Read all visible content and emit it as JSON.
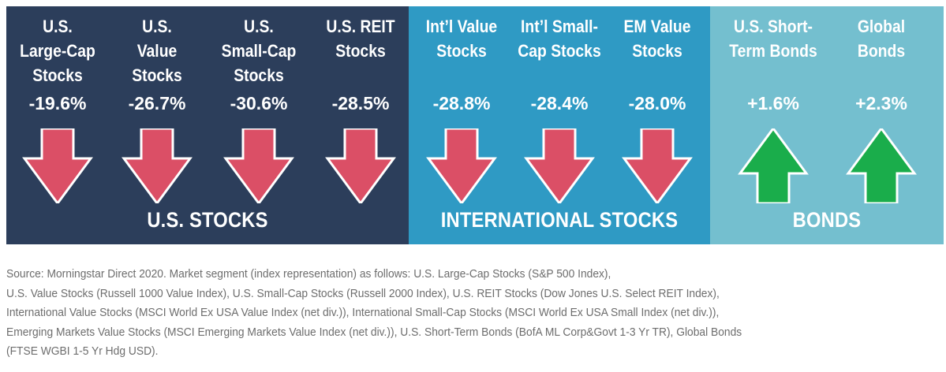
{
  "chart_data": {
    "type": "table",
    "groups": [
      {
        "name": "U.S. STOCKS",
        "color": "#2c3e5b",
        "items": [
          {
            "label": "U.S.\nLarge-Cap\nStocks",
            "value": -19.6,
            "display": "-19.6%",
            "direction": "down"
          },
          {
            "label": "U.S.\nValue\nStocks",
            "value": -26.7,
            "display": "-26.7%",
            "direction": "down"
          },
          {
            "label": "U.S.\nSmall-Cap\nStocks",
            "value": -30.6,
            "display": "-30.6%",
            "direction": "down"
          },
          {
            "label": "U.S. REIT\nStocks",
            "value": -28.5,
            "display": "-28.5%",
            "direction": "down"
          }
        ]
      },
      {
        "name": "INTERNATIONAL STOCKS",
        "color": "#2f9ac4",
        "items": [
          {
            "label": "Int’l Value\nStocks",
            "value": -28.8,
            "display": "-28.8%",
            "direction": "down"
          },
          {
            "label": "Int’l Small-\nCap Stocks",
            "value": -28.4,
            "display": "-28.4%",
            "direction": "down"
          },
          {
            "label": "EM Value\nStocks",
            "value": -28.0,
            "display": "-28.0%",
            "direction": "down"
          }
        ]
      },
      {
        "name": "BONDS",
        "color": "#74bfcf",
        "items": [
          {
            "label": "U.S. Short-\nTerm Bonds",
            "value": 1.6,
            "display": "+1.6%",
            "direction": "up"
          },
          {
            "label": "Global\nBonds",
            "value": 2.3,
            "display": "+2.3%",
            "direction": "up"
          }
        ]
      }
    ]
  },
  "arrow_colors": {
    "down": "#db4f66",
    "up": "#1aad4b"
  },
  "footnote": [
    "Source: Morningstar Direct 2020. Market segment (index representation) as follows: U.S. Large-Cap Stocks (S&P 500 Index),",
    "U.S. Value Stocks (Russell 1000 Value Index), U.S. Small-Cap Stocks (Russell 2000 Index), U.S. REIT Stocks (Dow Jones U.S. Select REIT Index),",
    "International Value Stocks (MSCI World Ex USA Value Index (net div.)), International Small-Cap Stocks (MSCI World Ex USA Small Index (net div.)),",
    "Emerging Markets Value Stocks (MSCI Emerging Markets Value Index (net div.)), U.S. Short-Term Bonds (BofA ML Corp&Govt 1-3 Yr TR), Global Bonds",
    "(FTSE WGBI 1-5 Yr Hdg USD)."
  ]
}
